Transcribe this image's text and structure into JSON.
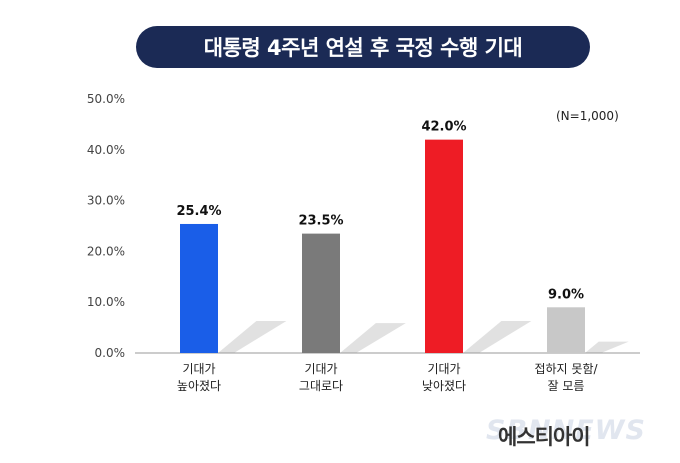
{
  "chart_data": {
    "type": "bar",
    "title": "대통령 4주년 연설 후 국정 수행 기대",
    "note": "(N=1,000)",
    "categories": [
      [
        "기대가",
        "높아졌다"
      ],
      [
        "기대가",
        "그대로다"
      ],
      [
        "기대가",
        "낮아졌다"
      ],
      [
        "접하지 못함/",
        "잘 모름"
      ]
    ],
    "values": [
      25.4,
      23.5,
      42.0,
      9.0
    ],
    "data_labels": [
      "25.4%",
      "23.5%",
      "42.0%",
      "9.0%"
    ],
    "colors": [
      "#1a5ee8",
      "#7a7a7a",
      "#ee1c25",
      "#c8c8c8"
    ],
    "ylim": [
      0,
      50
    ],
    "yticks": [
      "0.0%",
      "10.0%",
      "20.0%",
      "30.0%",
      "40.0%",
      "50.0%"
    ],
    "grid": false
  },
  "footer": {
    "source": "에스티아이",
    "watermark": "SBNNEWS"
  }
}
